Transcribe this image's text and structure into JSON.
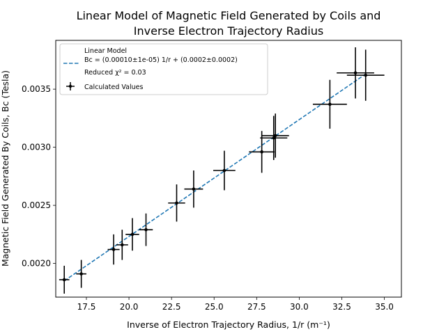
{
  "chart_data": {
    "type": "scatter",
    "title_lines": [
      "Linear Model of Magnetic Field Generated by Coils and",
      "Inverse Electron Trajectory Radius"
    ],
    "xlabel": "Inverse of Electron Trajectory Radius, 1/r (m⁻¹)",
    "ylabel": "Magnetic Field Generated By Coils, Bc (Tesla)",
    "xlim": [
      15.7,
      36.0
    ],
    "ylim": [
      0.00171,
      0.00392
    ],
    "x_ticks": [
      17.5,
      20.0,
      22.5,
      25.0,
      27.5,
      30.0,
      32.5,
      35.0
    ],
    "x_tick_labels": [
      "17.5",
      "20.0",
      "22.5",
      "25.0",
      "27.5",
      "30.0",
      "32.5",
      "35.0"
    ],
    "y_ticks": [
      0.002,
      0.0025,
      0.003,
      0.0035
    ],
    "y_tick_labels": [
      "0.0020",
      "0.0025",
      "0.0030",
      "0.0035"
    ],
    "grid": false,
    "legend_position": "upper-left",
    "legend": {
      "model_title": "Linear Model",
      "model_equation": "Bc = (0.00010±1e-05) 1/r + (0.0002±0.0002)",
      "model_chi": "Reduced χ² = 0.03",
      "points_label": "Calculated Values"
    },
    "series": [
      {
        "type": "line",
        "style": "dashed",
        "color": "#1f77b4",
        "x": [
          16.2,
          33.9
        ],
        "y": [
          0.00185,
          0.00363
        ]
      },
      {
        "type": "scatter-errorbar",
        "color": "#000000",
        "points": [
          {
            "x": 16.2,
            "y": 0.00186,
            "xerr": 0.3,
            "yerr": 0.00012
          },
          {
            "x": 17.2,
            "y": 0.00191,
            "xerr": 0.3,
            "yerr": 0.00012
          },
          {
            "x": 19.1,
            "y": 0.00212,
            "xerr": 0.35,
            "yerr": 0.00013
          },
          {
            "x": 19.6,
            "y": 0.00216,
            "xerr": 0.35,
            "yerr": 0.00013
          },
          {
            "x": 20.2,
            "y": 0.00225,
            "xerr": 0.4,
            "yerr": 0.00014
          },
          {
            "x": 21.0,
            "y": 0.00229,
            "xerr": 0.4,
            "yerr": 0.00014
          },
          {
            "x": 22.8,
            "y": 0.00252,
            "xerr": 0.5,
            "yerr": 0.00016
          },
          {
            "x": 23.8,
            "y": 0.00264,
            "xerr": 0.55,
            "yerr": 0.00016
          },
          {
            "x": 25.6,
            "y": 0.0028,
            "xerr": 0.65,
            "yerr": 0.00017
          },
          {
            "x": 27.8,
            "y": 0.00296,
            "xerr": 0.75,
            "yerr": 0.00018
          },
          {
            "x": 28.5,
            "y": 0.00308,
            "xerr": 0.8,
            "yerr": 0.00019
          },
          {
            "x": 28.6,
            "y": 0.0031,
            "xerr": 0.8,
            "yerr": 0.00019
          },
          {
            "x": 31.8,
            "y": 0.00337,
            "xerr": 1.0,
            "yerr": 0.00021
          },
          {
            "x": 33.3,
            "y": 0.00364,
            "xerr": 1.1,
            "yerr": 0.00022
          },
          {
            "x": 33.9,
            "y": 0.00362,
            "xerr": 1.1,
            "yerr": 0.00022
          }
        ]
      }
    ]
  }
}
